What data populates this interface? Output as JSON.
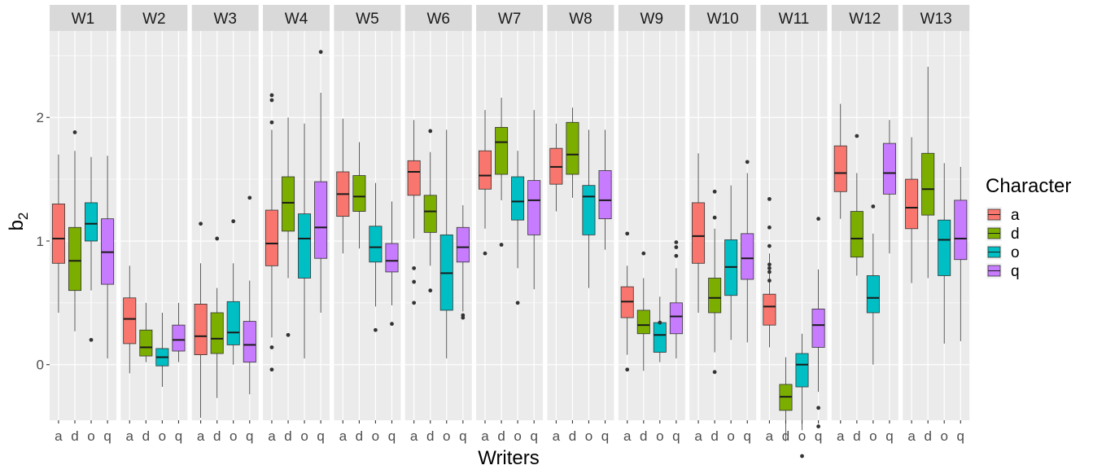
{
  "chart_data": {
    "type": "boxplot",
    "facet_by": "Writers",
    "xlabel": "Writers",
    "ylabel_main": "b",
    "ylabel_sub": "2",
    "ylim": [
      -0.45,
      2.7
    ],
    "yticks": [
      0,
      1,
      2
    ],
    "categories": [
      "a",
      "d",
      "o",
      "q"
    ],
    "legend": {
      "title": "Character",
      "placement": "right",
      "items": [
        {
          "label": "a",
          "color": "#F8766D"
        },
        {
          "label": "d",
          "color": "#7CAE00"
        },
        {
          "label": "o",
          "color": "#00BFC4"
        },
        {
          "label": "q",
          "color": "#C77CFF"
        }
      ]
    },
    "panels": [
      {
        "name": "W1",
        "boxes": [
          {
            "cat": "a",
            "min": 0.42,
            "q1": 0.82,
            "median": 1.02,
            "q3": 1.3,
            "max": 1.7,
            "outliers": []
          },
          {
            "cat": "d",
            "min": 0.27,
            "q1": 0.6,
            "median": 0.84,
            "q3": 1.11,
            "max": 1.73,
            "outliers": [
              1.88
            ]
          },
          {
            "cat": "o",
            "min": 0.6,
            "q1": 1.0,
            "median": 1.14,
            "q3": 1.31,
            "max": 1.68,
            "outliers": [
              0.2
            ]
          },
          {
            "cat": "q",
            "min": 0.05,
            "q1": 0.65,
            "median": 0.91,
            "q3": 1.18,
            "max": 1.69,
            "outliers": []
          }
        ]
      },
      {
        "name": "W2",
        "boxes": [
          {
            "cat": "a",
            "min": -0.07,
            "q1": 0.17,
            "median": 0.37,
            "q3": 0.54,
            "max": 0.8,
            "outliers": []
          },
          {
            "cat": "d",
            "min": 0.02,
            "q1": 0.07,
            "median": 0.14,
            "q3": 0.28,
            "max": 0.5,
            "outliers": []
          },
          {
            "cat": "o",
            "min": -0.18,
            "q1": -0.01,
            "median": 0.06,
            "q3": 0.13,
            "max": 0.42,
            "outliers": []
          },
          {
            "cat": "q",
            "min": 0.02,
            "q1": 0.11,
            "median": 0.2,
            "q3": 0.32,
            "max": 0.5,
            "outliers": []
          }
        ]
      },
      {
        "name": "W3",
        "boxes": [
          {
            "cat": "a",
            "min": -0.43,
            "q1": 0.08,
            "median": 0.23,
            "q3": 0.49,
            "max": 0.82,
            "outliers": [
              1.14
            ]
          },
          {
            "cat": "d",
            "min": -0.27,
            "q1": 0.09,
            "median": 0.21,
            "q3": 0.42,
            "max": 0.62,
            "outliers": [
              1.02
            ]
          },
          {
            "cat": "o",
            "min": 0.0,
            "q1": 0.16,
            "median": 0.26,
            "q3": 0.51,
            "max": 0.82,
            "outliers": [
              1.16
            ]
          },
          {
            "cat": "q",
            "min": -0.24,
            "q1": 0.02,
            "median": 0.16,
            "q3": 0.35,
            "max": 0.68,
            "outliers": [
              1.35
            ]
          }
        ]
      },
      {
        "name": "W4",
        "boxes": [
          {
            "cat": "a",
            "min": 0.22,
            "q1": 0.8,
            "median": 0.98,
            "q3": 1.25,
            "max": 1.9,
            "outliers": [
              2.18,
              2.14,
              1.96,
              0.14,
              -0.04
            ]
          },
          {
            "cat": "d",
            "min": 0.7,
            "q1": 1.08,
            "median": 1.31,
            "q3": 1.52,
            "max": 2.0,
            "outliers": [
              0.24
            ]
          },
          {
            "cat": "o",
            "min": 0.05,
            "q1": 0.7,
            "median": 1.02,
            "q3": 1.22,
            "max": 1.95,
            "outliers": []
          },
          {
            "cat": "q",
            "min": 0.42,
            "q1": 0.86,
            "median": 1.11,
            "q3": 1.48,
            "max": 2.2,
            "outliers": [
              2.53
            ]
          }
        ]
      },
      {
        "name": "W5",
        "boxes": [
          {
            "cat": "a",
            "min": 0.9,
            "q1": 1.2,
            "median": 1.38,
            "q3": 1.56,
            "max": 1.99,
            "outliers": []
          },
          {
            "cat": "d",
            "min": 0.94,
            "q1": 1.24,
            "median": 1.36,
            "q3": 1.53,
            "max": 1.8,
            "outliers": []
          },
          {
            "cat": "o",
            "min": 0.47,
            "q1": 0.83,
            "median": 0.95,
            "q3": 1.12,
            "max": 1.47,
            "outliers": [
              0.28
            ]
          },
          {
            "cat": "q",
            "min": 0.48,
            "q1": 0.75,
            "median": 0.84,
            "q3": 0.98,
            "max": 1.32,
            "outliers": [
              0.33
            ]
          }
        ]
      },
      {
        "name": "W6",
        "boxes": [
          {
            "cat": "a",
            "min": 1.02,
            "q1": 1.37,
            "median": 1.56,
            "q3": 1.65,
            "max": 1.98,
            "outliers": [
              0.78,
              0.67,
              0.5
            ]
          },
          {
            "cat": "d",
            "min": 0.8,
            "q1": 1.07,
            "median": 1.24,
            "q3": 1.37,
            "max": 1.72,
            "outliers": [
              1.89,
              0.6
            ]
          },
          {
            "cat": "o",
            "min": 0.05,
            "q1": 0.44,
            "median": 0.74,
            "q3": 1.05,
            "max": 1.9,
            "outliers": []
          },
          {
            "cat": "q",
            "min": 0.43,
            "q1": 0.83,
            "median": 0.95,
            "q3": 1.11,
            "max": 1.29,
            "outliers": [
              0.4,
              0.38
            ]
          }
        ]
      },
      {
        "name": "W7",
        "boxes": [
          {
            "cat": "a",
            "min": 1.1,
            "q1": 1.42,
            "median": 1.53,
            "q3": 1.73,
            "max": 2.06,
            "outliers": [
              0.9
            ]
          },
          {
            "cat": "d",
            "min": 1.33,
            "q1": 1.54,
            "median": 1.8,
            "q3": 1.92,
            "max": 2.16,
            "outliers": [
              0.97
            ]
          },
          {
            "cat": "o",
            "min": 0.78,
            "q1": 1.17,
            "median": 1.32,
            "q3": 1.52,
            "max": 1.73,
            "outliers": [
              0.5
            ]
          },
          {
            "cat": "q",
            "min": 0.61,
            "q1": 1.05,
            "median": 1.33,
            "q3": 1.49,
            "max": 2.06,
            "outliers": []
          }
        ]
      },
      {
        "name": "W8",
        "boxes": [
          {
            "cat": "a",
            "min": 1.24,
            "q1": 1.46,
            "median": 1.6,
            "q3": 1.75,
            "max": 1.95,
            "outliers": []
          },
          {
            "cat": "d",
            "min": 1.35,
            "q1": 1.54,
            "median": 1.7,
            "q3": 1.96,
            "max": 2.08,
            "outliers": []
          },
          {
            "cat": "o",
            "min": 0.62,
            "q1": 1.05,
            "median": 1.36,
            "q3": 1.45,
            "max": 1.9,
            "outliers": []
          },
          {
            "cat": "q",
            "min": 0.93,
            "q1": 1.18,
            "median": 1.33,
            "q3": 1.57,
            "max": 1.9,
            "outliers": []
          }
        ]
      },
      {
        "name": "W9",
        "boxes": [
          {
            "cat": "a",
            "min": 0.08,
            "q1": 0.38,
            "median": 0.51,
            "q3": 0.63,
            "max": 0.8,
            "outliers": [
              1.06,
              -0.04
            ]
          },
          {
            "cat": "d",
            "min": -0.05,
            "q1": 0.25,
            "median": 0.32,
            "q3": 0.44,
            "max": 0.7,
            "outliers": [
              0.9
            ]
          },
          {
            "cat": "o",
            "min": 0.02,
            "q1": 0.1,
            "median": 0.24,
            "q3": 0.34,
            "max": 0.55,
            "outliers": [
              0.34
            ]
          },
          {
            "cat": "q",
            "min": 0.05,
            "q1": 0.25,
            "median": 0.39,
            "q3": 0.5,
            "max": 0.78,
            "outliers": [
              0.99,
              0.95,
              0.88
            ]
          }
        ]
      },
      {
        "name": "W10",
        "boxes": [
          {
            "cat": "a",
            "min": 0.42,
            "q1": 0.82,
            "median": 1.04,
            "q3": 1.31,
            "max": 1.71,
            "outliers": []
          },
          {
            "cat": "d",
            "min": 0.1,
            "q1": 0.42,
            "median": 0.54,
            "q3": 0.7,
            "max": 1.1,
            "outliers": [
              1.4,
              1.19,
              -0.06
            ]
          },
          {
            "cat": "o",
            "min": 0.2,
            "q1": 0.56,
            "median": 0.79,
            "q3": 1.01,
            "max": 1.45,
            "outliers": []
          },
          {
            "cat": "q",
            "min": 0.18,
            "q1": 0.69,
            "median": 0.86,
            "q3": 1.06,
            "max": 1.55,
            "outliers": [
              1.64
            ]
          }
        ]
      },
      {
        "name": "W11",
        "boxes": [
          {
            "cat": "a",
            "min": 0.14,
            "q1": 0.32,
            "median": 0.47,
            "q3": 0.57,
            "max": 0.9,
            "outliers": [
              1.34,
              1.11,
              0.96,
              0.81,
              0.78,
              0.75,
              0.68
            ]
          },
          {
            "cat": "d",
            "min": -0.62,
            "q1": -0.37,
            "median": -0.26,
            "q3": -0.16,
            "max": 0.06,
            "outliers": []
          },
          {
            "cat": "o",
            "min": -0.53,
            "q1": -0.18,
            "median": 0.0,
            "q3": 0.09,
            "max": 0.25,
            "outliers": [
              -0.74
            ]
          },
          {
            "cat": "q",
            "min": -0.22,
            "q1": 0.14,
            "median": 0.32,
            "q3": 0.45,
            "max": 0.77,
            "outliers": [
              1.18,
              -0.35,
              -0.5
            ]
          }
        ]
      },
      {
        "name": "W12",
        "boxes": [
          {
            "cat": "a",
            "min": 1.18,
            "q1": 1.4,
            "median": 1.55,
            "q3": 1.77,
            "max": 2.11,
            "outliers": []
          },
          {
            "cat": "d",
            "min": 0.72,
            "q1": 0.87,
            "median": 1.02,
            "q3": 1.24,
            "max": 1.55,
            "outliers": [
              1.85
            ]
          },
          {
            "cat": "o",
            "min": 0.0,
            "q1": 0.42,
            "median": 0.54,
            "q3": 0.72,
            "max": 1.06,
            "outliers": [
              1.28
            ]
          },
          {
            "cat": "q",
            "min": 0.9,
            "q1": 1.38,
            "median": 1.55,
            "q3": 1.79,
            "max": 1.98,
            "outliers": []
          }
        ]
      },
      {
        "name": "W13",
        "boxes": [
          {
            "cat": "a",
            "min": 0.66,
            "q1": 1.1,
            "median": 1.27,
            "q3": 1.5,
            "max": 1.84,
            "outliers": []
          },
          {
            "cat": "d",
            "min": 0.7,
            "q1": 1.21,
            "median": 1.42,
            "q3": 1.71,
            "max": 2.41,
            "outliers": []
          },
          {
            "cat": "o",
            "min": 0.17,
            "q1": 0.72,
            "median": 1.01,
            "q3": 1.17,
            "max": 1.63,
            "outliers": []
          },
          {
            "cat": "q",
            "min": 0.19,
            "q1": 0.85,
            "median": 1.02,
            "q3": 1.33,
            "max": 1.6,
            "outliers": []
          }
        ]
      }
    ]
  }
}
